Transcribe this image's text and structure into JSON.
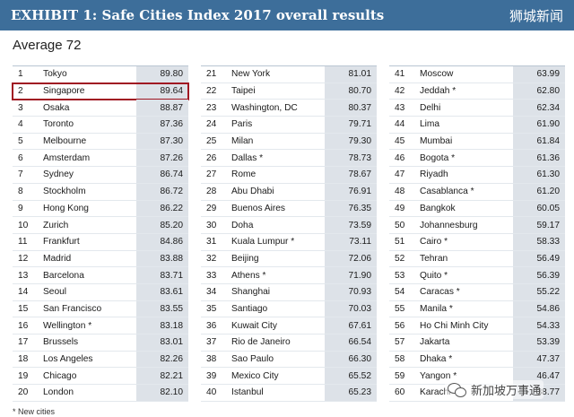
{
  "header": {
    "title": "EXHIBIT 1: Safe Cities Index 2017 overall results",
    "watermark": "狮城新闻",
    "bg_color": "#3d6e9a"
  },
  "average_label": "Average 72",
  "highlight_color": "#a01622",
  "columns": [
    [
      {
        "rank": "1",
        "city": "Tokyo",
        "score": "89.80"
      },
      {
        "rank": "2",
        "city": "Singapore",
        "score": "89.64",
        "highlight": true
      },
      {
        "rank": "3",
        "city": "Osaka",
        "score": "88.87"
      },
      {
        "rank": "4",
        "city": "Toronto",
        "score": "87.36"
      },
      {
        "rank": "5",
        "city": "Melbourne",
        "score": "87.30"
      },
      {
        "rank": "6",
        "city": "Amsterdam",
        "score": "87.26"
      },
      {
        "rank": "7",
        "city": "Sydney",
        "score": "86.74"
      },
      {
        "rank": "8",
        "city": "Stockholm",
        "score": "86.72"
      },
      {
        "rank": "9",
        "city": "Hong Kong",
        "score": "86.22"
      },
      {
        "rank": "10",
        "city": "Zurich",
        "score": "85.20"
      },
      {
        "rank": "11",
        "city": "Frankfurt",
        "score": "84.86"
      },
      {
        "rank": "12",
        "city": "Madrid",
        "score": "83.88"
      },
      {
        "rank": "13",
        "city": "Barcelona",
        "score": "83.71"
      },
      {
        "rank": "14",
        "city": "Seoul",
        "score": "83.61"
      },
      {
        "rank": "15",
        "city": "San Francisco",
        "score": "83.55"
      },
      {
        "rank": "16",
        "city": "Wellington *",
        "score": "83.18"
      },
      {
        "rank": "17",
        "city": "Brussels",
        "score": "83.01"
      },
      {
        "rank": "18",
        "city": "Los Angeles",
        "score": "82.26"
      },
      {
        "rank": "19",
        "city": "Chicago",
        "score": "82.21"
      },
      {
        "rank": "20",
        "city": "London",
        "score": "82.10"
      }
    ],
    [
      {
        "rank": "21",
        "city": "New York",
        "score": "81.01"
      },
      {
        "rank": "22",
        "city": "Taipei",
        "score": "80.70"
      },
      {
        "rank": "23",
        "city": "Washington, DC",
        "score": "80.37"
      },
      {
        "rank": "24",
        "city": "Paris",
        "score": "79.71"
      },
      {
        "rank": "25",
        "city": "Milan",
        "score": "79.30"
      },
      {
        "rank": "26",
        "city": "Dallas *",
        "score": "78.73"
      },
      {
        "rank": "27",
        "city": "Rome",
        "score": "78.67"
      },
      {
        "rank": "28",
        "city": "Abu Dhabi",
        "score": "76.91"
      },
      {
        "rank": "29",
        "city": "Buenos Aires",
        "score": "76.35"
      },
      {
        "rank": "30",
        "city": "Doha",
        "score": "73.59"
      },
      {
        "rank": "31",
        "city": "Kuala Lumpur *",
        "score": "73.11"
      },
      {
        "rank": "32",
        "city": "Beijing",
        "score": "72.06"
      },
      {
        "rank": "33",
        "city": "Athens *",
        "score": "71.90"
      },
      {
        "rank": "34",
        "city": "Shanghai",
        "score": "70.93"
      },
      {
        "rank": "35",
        "city": "Santiago",
        "score": "70.03"
      },
      {
        "rank": "36",
        "city": "Kuwait City",
        "score": "67.61"
      },
      {
        "rank": "37",
        "city": "Rio de Janeiro",
        "score": "66.54"
      },
      {
        "rank": "38",
        "city": "Sao Paulo",
        "score": "66.30"
      },
      {
        "rank": "39",
        "city": "Mexico City",
        "score": "65.52"
      },
      {
        "rank": "40",
        "city": "Istanbul",
        "score": "65.23"
      }
    ],
    [
      {
        "rank": "41",
        "city": "Moscow",
        "score": "63.99"
      },
      {
        "rank": "42",
        "city": "Jeddah *",
        "score": "62.80"
      },
      {
        "rank": "43",
        "city": "Delhi",
        "score": "62.34"
      },
      {
        "rank": "44",
        "city": "Lima",
        "score": "61.90"
      },
      {
        "rank": "45",
        "city": "Mumbai",
        "score": "61.84"
      },
      {
        "rank": "46",
        "city": "Bogota *",
        "score": "61.36"
      },
      {
        "rank": "47",
        "city": "Riyadh",
        "score": "61.30"
      },
      {
        "rank": "48",
        "city": "Casablanca *",
        "score": "61.20"
      },
      {
        "rank": "49",
        "city": "Bangkok",
        "score": "60.05"
      },
      {
        "rank": "50",
        "city": "Johannesburg",
        "score": "59.17"
      },
      {
        "rank": "51",
        "city": "Cairo *",
        "score": "58.33"
      },
      {
        "rank": "52",
        "city": "Tehran",
        "score": "56.49"
      },
      {
        "rank": "53",
        "city": "Quito *",
        "score": "56.39"
      },
      {
        "rank": "54",
        "city": "Caracas *",
        "score": "55.22"
      },
      {
        "rank": "55",
        "city": "Manila *",
        "score": "54.86"
      },
      {
        "rank": "56",
        "city": "Ho Chi Minh City",
        "score": "54.33"
      },
      {
        "rank": "57",
        "city": "Jakarta",
        "score": "53.39"
      },
      {
        "rank": "58",
        "city": "Dhaka *",
        "score": "47.37"
      },
      {
        "rank": "59",
        "city": "Yangon *",
        "score": "46.47"
      },
      {
        "rank": "60",
        "city": "Karachi",
        "score": "38.77"
      }
    ]
  ],
  "footnote": "* New cities",
  "bottom_watermark": "新加坡万事通",
  "bottom_watermark_icon": "wechat-icon"
}
